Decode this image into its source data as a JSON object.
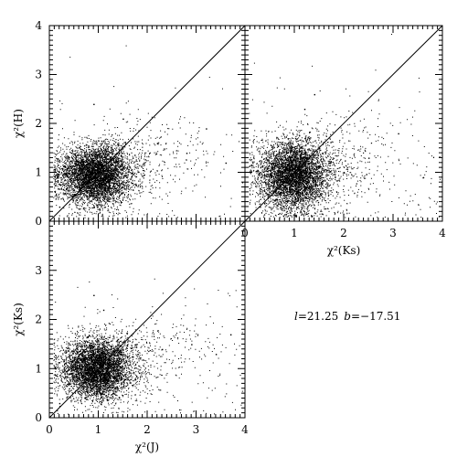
{
  "chart_data": [
    {
      "type": "scatter",
      "panel": "top-left",
      "xlabel": "",
      "ylabel": "χ²(H)",
      "xlim": [
        0,
        4
      ],
      "ylim": [
        0,
        4
      ],
      "x_ticks": [
        0,
        1,
        2,
        3,
        4
      ],
      "y_ticks": [
        0,
        1,
        2,
        3,
        4
      ],
      "x_tick_labels_shown": false,
      "y_tick_labels_shown": true,
      "reference_line": "y=x",
      "cloud_center": [
        0.9,
        0.95
      ],
      "cloud_spread": [
        0.35,
        0.3
      ],
      "grid": false,
      "points": [
        [
          0.2,
          0.3
        ],
        [
          0.4,
          0.5
        ],
        [
          0.6,
          0.7
        ],
        [
          0.8,
          0.9
        ],
        [
          1.0,
          1.0
        ],
        [
          1.2,
          1.1
        ],
        [
          1.4,
          1.2
        ],
        [
          1.7,
          1.3
        ],
        [
          2.2,
          1.6
        ],
        [
          2.8,
          1.4
        ],
        [
          3.2,
          1.9
        ],
        [
          0.9,
          2.4
        ],
        [
          1.5,
          2.1
        ],
        [
          3.6,
          1.2
        ]
      ]
    },
    {
      "type": "scatter",
      "panel": "top-right",
      "xlabel": "χ²(Ks)",
      "ylabel": "",
      "xlim": [
        0,
        4
      ],
      "ylim": [
        0,
        4
      ],
      "x_ticks": [
        0,
        1,
        2,
        3,
        4
      ],
      "y_ticks": [
        0,
        1,
        2,
        3,
        4
      ],
      "x_tick_labels_shown": true,
      "y_tick_labels_shown": false,
      "reference_line": "y=x",
      "cloud_center": [
        0.95,
        0.95
      ],
      "cloud_spread": [
        0.35,
        0.35
      ],
      "grid": false,
      "points": [
        [
          0.3,
          0.3
        ],
        [
          0.5,
          0.6
        ],
        [
          0.8,
          0.8
        ],
        [
          1.0,
          1.0
        ],
        [
          1.1,
          1.2
        ],
        [
          1.3,
          1.3
        ],
        [
          1.5,
          1.5
        ],
        [
          1.7,
          1.2
        ],
        [
          2.0,
          1.0
        ],
        [
          2.5,
          1.3
        ],
        [
          1.2,
          2.3
        ],
        [
          1.4,
          2.6
        ],
        [
          3.1,
          1.8
        ],
        [
          3.6,
          0.9
        ]
      ]
    },
    {
      "type": "scatter",
      "panel": "bottom-left",
      "xlabel": "χ²(J)",
      "ylabel": "χ²(Ks)",
      "xlim": [
        0,
        4
      ],
      "ylim": [
        0,
        4
      ],
      "x_ticks": [
        0,
        1,
        2,
        3,
        4
      ],
      "y_ticks": [
        0,
        1,
        2,
        3
      ],
      "x_tick_labels_shown": true,
      "y_tick_labels_shown": true,
      "reference_line": "y=x",
      "cloud_center": [
        0.95,
        1.0
      ],
      "cloud_spread": [
        0.35,
        0.3
      ],
      "grid": false,
      "points": [
        [
          0.2,
          0.3
        ],
        [
          0.4,
          0.6
        ],
        [
          0.6,
          0.8
        ],
        [
          0.8,
          1.0
        ],
        [
          1.0,
          1.1
        ],
        [
          1.2,
          1.0
        ],
        [
          1.5,
          1.2
        ],
        [
          1.8,
          1.3
        ],
        [
          2.3,
          1.4
        ],
        [
          2.9,
          1.5
        ],
        [
          3.4,
          1.3
        ],
        [
          0.9,
          2.5
        ],
        [
          1.1,
          2.2
        ],
        [
          3.7,
          1.7
        ]
      ]
    }
  ],
  "annotation": {
    "l_symbol": "l",
    "l_value": "=21.25",
    "b_symbol": "b",
    "b_value": "=−17.51"
  }
}
